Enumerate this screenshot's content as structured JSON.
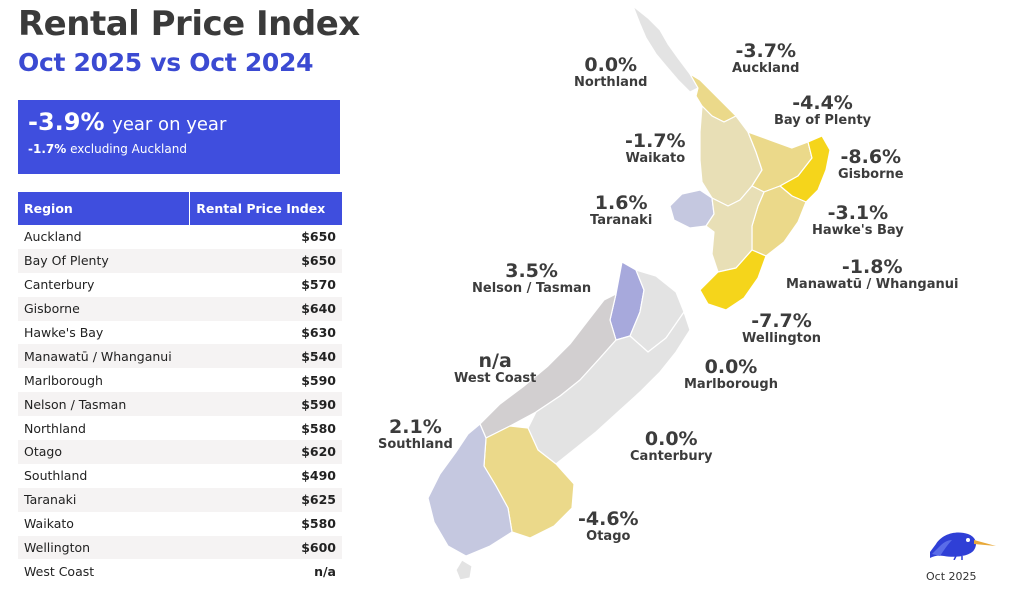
{
  "header": {
    "title": "Rental Price Index",
    "subtitle": "Oct 2025 vs Oct 2024"
  },
  "summary": {
    "headline_value": "-3.9%",
    "headline_text": "year on year",
    "secondary_value": "-1.7%",
    "secondary_text": "excluding Auckland"
  },
  "table": {
    "headers": [
      "Region",
      "Rental Price Index"
    ],
    "rows": [
      {
        "region": "Auckland",
        "value": "$650"
      },
      {
        "region": "Bay Of Plenty",
        "value": "$650"
      },
      {
        "region": "Canterbury",
        "value": "$570"
      },
      {
        "region": "Gisborne",
        "value": "$640"
      },
      {
        "region": "Hawke's Bay",
        "value": "$630"
      },
      {
        "region": "Manawatū / Whanganui",
        "value": "$540"
      },
      {
        "region": "Marlborough",
        "value": "$590"
      },
      {
        "region": "Nelson / Tasman",
        "value": "$590"
      },
      {
        "region": "Northland",
        "value": "$580"
      },
      {
        "region": "Otago",
        "value": "$620"
      },
      {
        "region": "Southland",
        "value": "$490"
      },
      {
        "region": "Taranaki",
        "value": "$625"
      },
      {
        "region": "Waikato",
        "value": "$580"
      },
      {
        "region": "Wellington",
        "value": "$600"
      },
      {
        "region": "West Coast",
        "value": "n/a"
      }
    ]
  },
  "map": {
    "regions": [
      {
        "name": "Northland",
        "change": "0.0%"
      },
      {
        "name": "Auckland",
        "change": "-3.7%"
      },
      {
        "name": "Bay of Plenty",
        "change": "-4.4%"
      },
      {
        "name": "Waikato",
        "change": "-1.7%"
      },
      {
        "name": "Gisborne",
        "change": "-8.6%"
      },
      {
        "name": "Taranaki",
        "change": "1.6%"
      },
      {
        "name": "Hawke's Bay",
        "change": "-3.1%"
      },
      {
        "name": "Manawatū / Whanganui",
        "change": "-1.8%"
      },
      {
        "name": "Nelson / Tasman",
        "change": "3.5%"
      },
      {
        "name": "Wellington",
        "change": "-7.7%"
      },
      {
        "name": "West Coast",
        "change": "n/a"
      },
      {
        "name": "Marlborough",
        "change": "0.0%"
      },
      {
        "name": "Southland",
        "change": "2.1%"
      },
      {
        "name": "Canterbury",
        "change": "0.0%"
      },
      {
        "name": "Otago",
        "change": "-4.6%"
      }
    ],
    "colors": {
      "neutral": "#e3e3e3",
      "light_yellow": "#e8dfb6",
      "mid_yellow": "#ebd98a",
      "strong_yellow": "#f5d51b",
      "light_purple": "#c5c8e0",
      "purple": "#a7a9dc",
      "gray": "#d2cfd0"
    }
  },
  "footer": {
    "date": "Oct 2025"
  }
}
